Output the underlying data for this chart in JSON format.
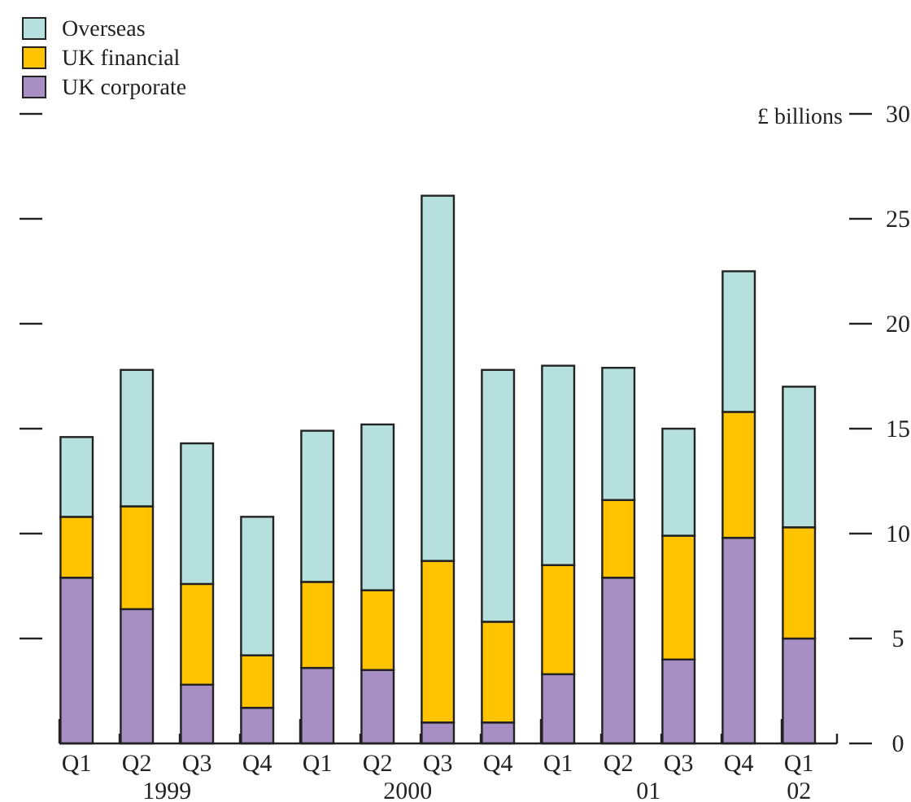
{
  "chart_data": {
    "type": "bar",
    "stacked": true,
    "ylabel": "£ billions",
    "categories": [
      "Q1",
      "Q2",
      "Q3",
      "Q4",
      "Q1",
      "Q2",
      "Q3",
      "Q4",
      "Q1",
      "Q2",
      "Q3",
      "Q4",
      "Q1"
    ],
    "series": [
      {
        "name": "UK corporate",
        "color": "#a78fc4",
        "values": [
          7.9,
          6.4,
          2.8,
          1.7,
          3.6,
          3.5,
          1.0,
          1.0,
          3.3,
          7.9,
          4.0,
          9.8,
          5.0
        ]
      },
      {
        "name": "UK financial",
        "color": "#ffc300",
        "values": [
          2.9,
          4.9,
          4.8,
          2.5,
          4.1,
          3.8,
          7.7,
          4.8,
          5.2,
          3.7,
          5.9,
          6.0,
          5.3
        ]
      },
      {
        "name": "Overseas",
        "color": "#b5e0de",
        "values": [
          3.8,
          6.5,
          6.7,
          6.6,
          7.2,
          7.9,
          17.4,
          12.0,
          9.5,
          6.3,
          5.1,
          6.7,
          6.7
        ]
      }
    ],
    "ylim": [
      0,
      30
    ],
    "yticks": [
      0,
      5,
      10,
      15,
      20,
      25,
      30
    ],
    "legend": "top left",
    "annotations": [
      "1999",
      "2000",
      "01",
      "02"
    ]
  }
}
